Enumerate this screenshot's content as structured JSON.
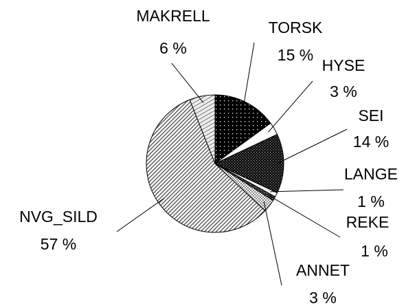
{
  "chart_data": {
    "type": "pie",
    "categories": [
      "TORSK",
      "HYSE",
      "SEI",
      "LANGE",
      "REKE",
      "ANNET",
      "NVG_SILD",
      "MAKRELL"
    ],
    "values": [
      15,
      3,
      14,
      1,
      1,
      3,
      57,
      6
    ],
    "value_labels": [
      "15 %",
      "3 %",
      "14 %",
      "1 %",
      "1 %",
      "3 %",
      "57 %",
      "6 %"
    ]
  }
}
